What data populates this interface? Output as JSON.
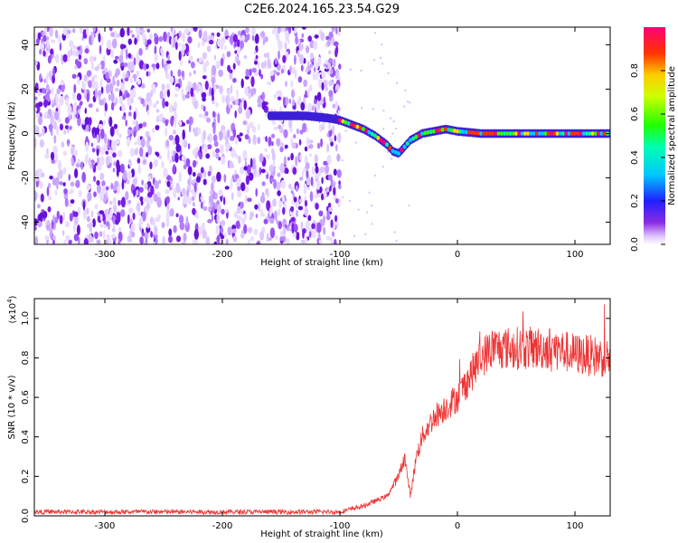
{
  "title": "C2E6.2024.165.23.54.G29",
  "chart_data": [
    {
      "type": "heatmap",
      "xlabel": "Height of straight line (km)",
      "ylabel": "Frequency (Hz)",
      "xlim": [
        -360,
        130
      ],
      "ylim": [
        -50,
        48
      ],
      "x_ticks": [
        -300,
        -200,
        -100,
        0,
        100
      ],
      "y_ticks": [
        -40,
        -20,
        0,
        20,
        40
      ],
      "trace": {
        "x": [
          -160,
          -130,
          -110,
          -100,
          -90,
          -80,
          -70,
          -60,
          -55,
          -50,
          -45,
          -40,
          -30,
          -20,
          -10,
          0,
          20,
          40,
          60,
          80,
          100,
          130
        ],
        "y": [
          8,
          8,
          7,
          6,
          4,
          2,
          -1,
          -5,
          -8,
          -9,
          -6,
          -3,
          0,
          1,
          2,
          1,
          0,
          0,
          0,
          0,
          0,
          0
        ]
      },
      "noise_region_x": [
        -360,
        -100
      ],
      "colorbar": {
        "label": "Normalized spectral amplitude",
        "ticks": [
          0.0,
          0.2,
          0.4,
          0.6,
          0.8
        ],
        "tick_labels": [
          "0.0",
          "0.2",
          "0.4",
          "0.6",
          "0.8"
        ]
      }
    },
    {
      "type": "line",
      "xlabel": "Height of straight line (km)",
      "ylabel": "SNR (10 * v/v)",
      "scale_label": "(x10",
      "scale_exp": "4",
      "scale_close": ")",
      "xlim": [
        -360,
        130
      ],
      "ylim": [
        0,
        1.1
      ],
      "x_ticks": [
        -300,
        -200,
        -100,
        0,
        100
      ],
      "y_ticks": [
        0.0,
        0.2,
        0.4,
        0.6,
        0.8,
        1.0
      ],
      "y_tick_labels": [
        "0.0",
        "0.2",
        "0.4",
        "0.6",
        "0.8",
        "1.0"
      ],
      "series": [
        {
          "color": "#ee3333",
          "x": [
            -360,
            -100,
            -80,
            -60,
            -50,
            -45,
            -40,
            -35,
            -30,
            -20,
            -10,
            0,
            10,
            20,
            30,
            40,
            60,
            80,
            100,
            130
          ],
          "y": [
            0.02,
            0.02,
            0.05,
            0.1,
            0.2,
            0.3,
            0.1,
            0.3,
            0.4,
            0.5,
            0.55,
            0.6,
            0.7,
            0.8,
            0.85,
            0.85,
            0.85,
            0.85,
            0.82,
            0.8
          ]
        }
      ]
    }
  ]
}
